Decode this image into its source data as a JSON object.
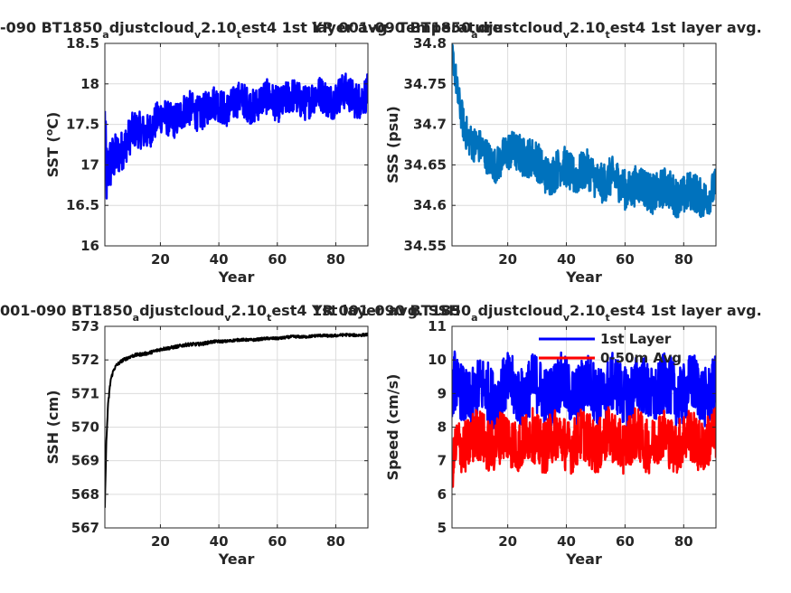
{
  "chart_data": [
    {
      "type": "line",
      "title_parts": [
        "-090 BT1850",
        "a",
        "djustcloud",
        "v",
        "2.10",
        "t",
        "est4 1st layer avg. Temperature"
      ],
      "xlabel": "Year",
      "ylabel": "SST (",
      "ylabel_sup": "o",
      "ylabel_tail": "C)",
      "xlim": [
        1,
        91
      ],
      "ylim": [
        16,
        18.5
      ],
      "xticks": [
        20,
        40,
        60,
        80
      ],
      "yticks": [
        16,
        16.5,
        17,
        17.5,
        18,
        18.5
      ],
      "ytick_labels": [
        "16",
        "16.5",
        "17",
        "17.5",
        "18",
        "18.5"
      ],
      "grid": true,
      "series": [
        {
          "color": "#0000ff",
          "linewidth": 2.5,
          "x": [
            1,
            1.5,
            2,
            3,
            4,
            5,
            7,
            10,
            15,
            20,
            25,
            30,
            35,
            40,
            45,
            50,
            55,
            60,
            65,
            70,
            75,
            80,
            85,
            91
          ],
          "y": [
            17.5,
            16.75,
            16.85,
            16.95,
            17.05,
            17.15,
            17.25,
            17.35,
            17.45,
            17.55,
            17.6,
            17.65,
            17.7,
            17.73,
            17.75,
            17.77,
            17.78,
            17.8,
            17.8,
            17.82,
            17.83,
            17.85,
            17.85,
            17.85
          ],
          "amp": [
            0.35,
            0.45,
            0.35,
            0.35,
            0.3,
            0.28,
            0.25,
            0.24,
            0.22,
            0.22,
            0.22,
            0.22,
            0.22,
            0.22,
            0.22,
            0.22,
            0.22,
            0.22,
            0.22,
            0.22,
            0.22,
            0.23,
            0.23,
            0.23
          ]
        }
      ]
    },
    {
      "type": "line",
      "title_parts": [
        "YR 001-090 BT1850",
        "a",
        "djustcloud",
        "v",
        "2.10",
        "t",
        "est4 1st layer avg."
      ],
      "xlabel": "Year",
      "ylabel": "SSS (psu)",
      "xlim": [
        1,
        91
      ],
      "ylim": [
        34.55,
        34.8
      ],
      "xticks": [
        20,
        40,
        60,
        80
      ],
      "yticks": [
        34.55,
        34.6,
        34.65,
        34.7,
        34.75,
        34.8
      ],
      "ytick_labels": [
        "34.55",
        "34.6",
        "34.65",
        "34.7",
        "34.75",
        "34.8"
      ],
      "grid": true,
      "series": [
        {
          "color": "#0072bd",
          "linewidth": 2.5,
          "x": [
            1,
            2,
            3,
            5,
            8,
            12,
            16,
            20,
            24,
            28,
            32,
            36,
            40,
            45,
            50,
            55,
            60,
            65,
            70,
            75,
            80,
            85,
            91
          ],
          "y": [
            34.79,
            34.76,
            34.73,
            34.7,
            34.68,
            34.66,
            34.655,
            34.66,
            34.67,
            34.655,
            34.645,
            34.64,
            34.645,
            34.64,
            34.635,
            34.63,
            34.625,
            34.62,
            34.62,
            34.615,
            34.615,
            34.61,
            34.62
          ],
          "amp": [
            0.012,
            0.02,
            0.02,
            0.022,
            0.022,
            0.022,
            0.022,
            0.025,
            0.025,
            0.025,
            0.025,
            0.025,
            0.025,
            0.025,
            0.025,
            0.025,
            0.025,
            0.025,
            0.025,
            0.025,
            0.025,
            0.025,
            0.022
          ]
        }
      ]
    },
    {
      "type": "line",
      "title_parts": [
        "001-090 BT1850",
        "a",
        "djustcloud",
        "v",
        "2.10",
        "t",
        "est4 1st layer avg. SSH"
      ],
      "xlabel": "Year",
      "ylabel": "SSH (cm)",
      "xlim": [
        1,
        91
      ],
      "ylim": [
        567,
        573
      ],
      "xticks": [
        20,
        40,
        60,
        80
      ],
      "yticks": [
        567,
        568,
        569,
        570,
        571,
        572,
        573
      ],
      "ytick_labels": [
        "567",
        "568",
        "569",
        "570",
        "571",
        "572",
        "573"
      ],
      "grid": true,
      "series": [
        {
          "color": "#000000",
          "linewidth": 2,
          "x": [
            1,
            1.2,
            1.5,
            2,
            2.5,
            3,
            4,
            5,
            7,
            10,
            15,
            20,
            25,
            30,
            35,
            40,
            45,
            50,
            55,
            60,
            65,
            70,
            75,
            80,
            85,
            91
          ],
          "y": [
            567.6,
            568.5,
            569.5,
            570.5,
            571.0,
            571.4,
            571.7,
            571.85,
            572.0,
            572.1,
            572.2,
            572.3,
            572.4,
            572.45,
            572.5,
            572.55,
            572.58,
            572.6,
            572.62,
            572.65,
            572.68,
            572.7,
            572.72,
            572.73,
            572.74,
            572.75
          ],
          "amp": [
            0,
            0.1,
            0.1,
            0.1,
            0.08,
            0.06,
            0.05,
            0.05,
            0.05,
            0.05,
            0.05,
            0.05,
            0.05,
            0.05,
            0.05,
            0.04,
            0.04,
            0.04,
            0.04,
            0.04,
            0.04,
            0.04,
            0.04,
            0.04,
            0.04,
            0.04
          ]
        }
      ]
    },
    {
      "type": "line",
      "title_parts": [
        "YR 001-090 BT1850",
        "a",
        "djustcloud",
        "v",
        "2.10",
        "t",
        "est4 1st layer avg."
      ],
      "xlabel": "Year",
      "ylabel": "Speed (cm/s)",
      "xlim": [
        1,
        91
      ],
      "ylim": [
        5,
        11
      ],
      "xticks": [
        20,
        40,
        60,
        80
      ],
      "yticks": [
        5,
        6,
        7,
        8,
        9,
        10,
        11
      ],
      "ytick_labels": [
        "5",
        "6",
        "7",
        "8",
        "9",
        "10",
        "11"
      ],
      "grid": true,
      "legend_position": "top-right",
      "series": [
        {
          "name": "1st Layer",
          "color": "#0000ff",
          "linewidth": 2.5,
          "x": [
            1,
            2,
            3,
            5,
            10,
            20,
            30,
            40,
            50,
            60,
            70,
            80,
            91
          ],
          "y": [
            8.8,
            9.2,
            9.0,
            9.0,
            9.0,
            9.1,
            9.1,
            9.1,
            9.1,
            9.1,
            9.1,
            9.1,
            9.1
          ],
          "amp": [
            0.6,
            1.0,
            0.8,
            0.9,
            0.9,
            0.9,
            0.9,
            0.9,
            0.9,
            0.9,
            0.9,
            0.9,
            0.9
          ]
        },
        {
          "name": "0-50m Avg",
          "color": "#ff0000",
          "linewidth": 2.5,
          "x": [
            1,
            2,
            3,
            5,
            10,
            20,
            30,
            40,
            50,
            60,
            70,
            80,
            91
          ],
          "y": [
            6.4,
            7.2,
            7.5,
            7.6,
            7.6,
            7.6,
            7.6,
            7.6,
            7.6,
            7.6,
            7.6,
            7.6,
            7.6
          ],
          "amp": [
            0.5,
            0.8,
            0.8,
            0.8,
            0.8,
            0.8,
            0.8,
            0.8,
            0.8,
            0.8,
            0.8,
            0.8,
            0.8
          ]
        }
      ]
    }
  ]
}
